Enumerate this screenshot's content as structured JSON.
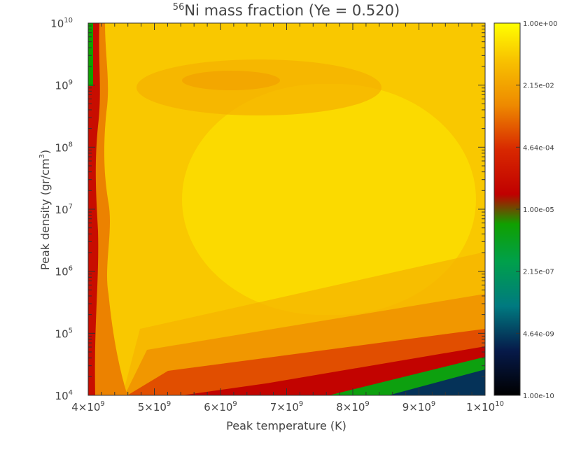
{
  "chart_data": {
    "type": "heatmap",
    "title_sup": "56",
    "title_main": "Ni mass fraction (Ye = 0.520)",
    "xlabel": "Peak temperature (K)",
    "ylabel_main": "Peak density (gr/cm",
    "ylabel_sup": "3",
    "ylabel_close": ")",
    "x_scale": "linear",
    "y_scale": "log",
    "xlim": [
      4000000000.0,
      10000000000.0
    ],
    "ylim": [
      10000.0,
      10000000000.0
    ],
    "x_ticks": [
      {
        "value": 4000000000.0,
        "mant": "4×10",
        "exp": "9"
      },
      {
        "value": 5000000000.0,
        "mant": "5×10",
        "exp": "9"
      },
      {
        "value": 6000000000.0,
        "mant": "6×10",
        "exp": "9"
      },
      {
        "value": 7000000000.0,
        "mant": "7×10",
        "exp": "9"
      },
      {
        "value": 8000000000.0,
        "mant": "8×10",
        "exp": "9"
      },
      {
        "value": 9000000000.0,
        "mant": "9×10",
        "exp": "9"
      },
      {
        "value": 10000000000.0,
        "mant": "1×10",
        "exp": "10"
      }
    ],
    "y_ticks": [
      {
        "value": 10000.0,
        "base": "10",
        "exp": "4"
      },
      {
        "value": 100000.0,
        "base": "10",
        "exp": "5"
      },
      {
        "value": 1000000.0,
        "base": "10",
        "exp": "6"
      },
      {
        "value": 10000000.0,
        "base": "10",
        "exp": "7"
      },
      {
        "value": 100000000.0,
        "base": "10",
        "exp": "8"
      },
      {
        "value": 1000000000.0,
        "base": "10",
        "exp": "9"
      },
      {
        "value": 10000000000.0,
        "base": "10",
        "exp": "10"
      }
    ],
    "colorbar": {
      "scale": "log",
      "range": [
        1e-10,
        1
      ],
      "labels": [
        "1.00e+00",
        "2.15e-02",
        "4.64e-04",
        "1.00e-05",
        "2.15e-07",
        "4.64e-09",
        "1.00e-10"
      ],
      "colormap": [
        {
          "t": 0.0,
          "color": "#000000"
        },
        {
          "t": 0.12,
          "color": "#061a4a"
        },
        {
          "t": 0.24,
          "color": "#007a80"
        },
        {
          "t": 0.36,
          "color": "#00a04a"
        },
        {
          "t": 0.46,
          "color": "#10a000"
        },
        {
          "t": 0.54,
          "color": "#c00000"
        },
        {
          "t": 0.66,
          "color": "#d82800"
        },
        {
          "t": 0.78,
          "color": "#ee8a00"
        },
        {
          "t": 0.9,
          "color": "#f8c200"
        },
        {
          "t": 1.0,
          "color": "#ffff00"
        }
      ]
    },
    "field_regions": [
      {
        "name": "background",
        "log_value": -0.9
      },
      {
        "name": "cold-edge-band",
        "log_value": -4.2
      },
      {
        "name": "high-temperature-low-density",
        "log_value": -4.5
      },
      {
        "name": "depleted-corner",
        "log_value": -8.5
      },
      {
        "name": "high-density-peak",
        "log_value": -0.2
      }
    ]
  }
}
